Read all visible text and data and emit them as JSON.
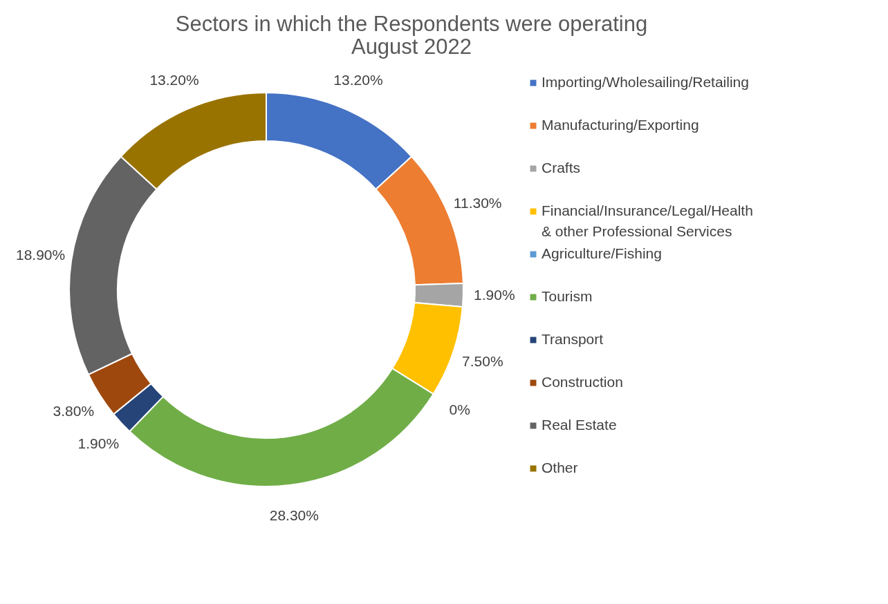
{
  "chart_data": {
    "type": "donut",
    "title": [
      "Sectors in which the Respondents were operating",
      "August 2022"
    ],
    "categories": [
      "Importing/Wholesailing/Retailing",
      "Manufacturing/Exporting",
      "Crafts",
      "Financial/Insurance/Legal/Health & other Professional Services",
      "Agriculture/Fishing",
      "Tourism",
      "Transport",
      "Construction",
      "Real Estate",
      "Other"
    ],
    "values": [
      13.2,
      11.3,
      1.9,
      7.5,
      0,
      28.3,
      1.9,
      3.8,
      18.9,
      13.2
    ],
    "value_labels": [
      "13.20%",
      "11.30%",
      "1.90%",
      "7.50%",
      "0%",
      "28.30%",
      "1.90%",
      "3.80%",
      "18.90%",
      "13.20%"
    ],
    "colors": [
      "#4472c4",
      "#ed7d31",
      "#a5a5a5",
      "#ffc000",
      "#5b9bd5",
      "#70ad47",
      "#264478",
      "#9e480e",
      "#636363",
      "#997300"
    ],
    "legend": "right"
  }
}
